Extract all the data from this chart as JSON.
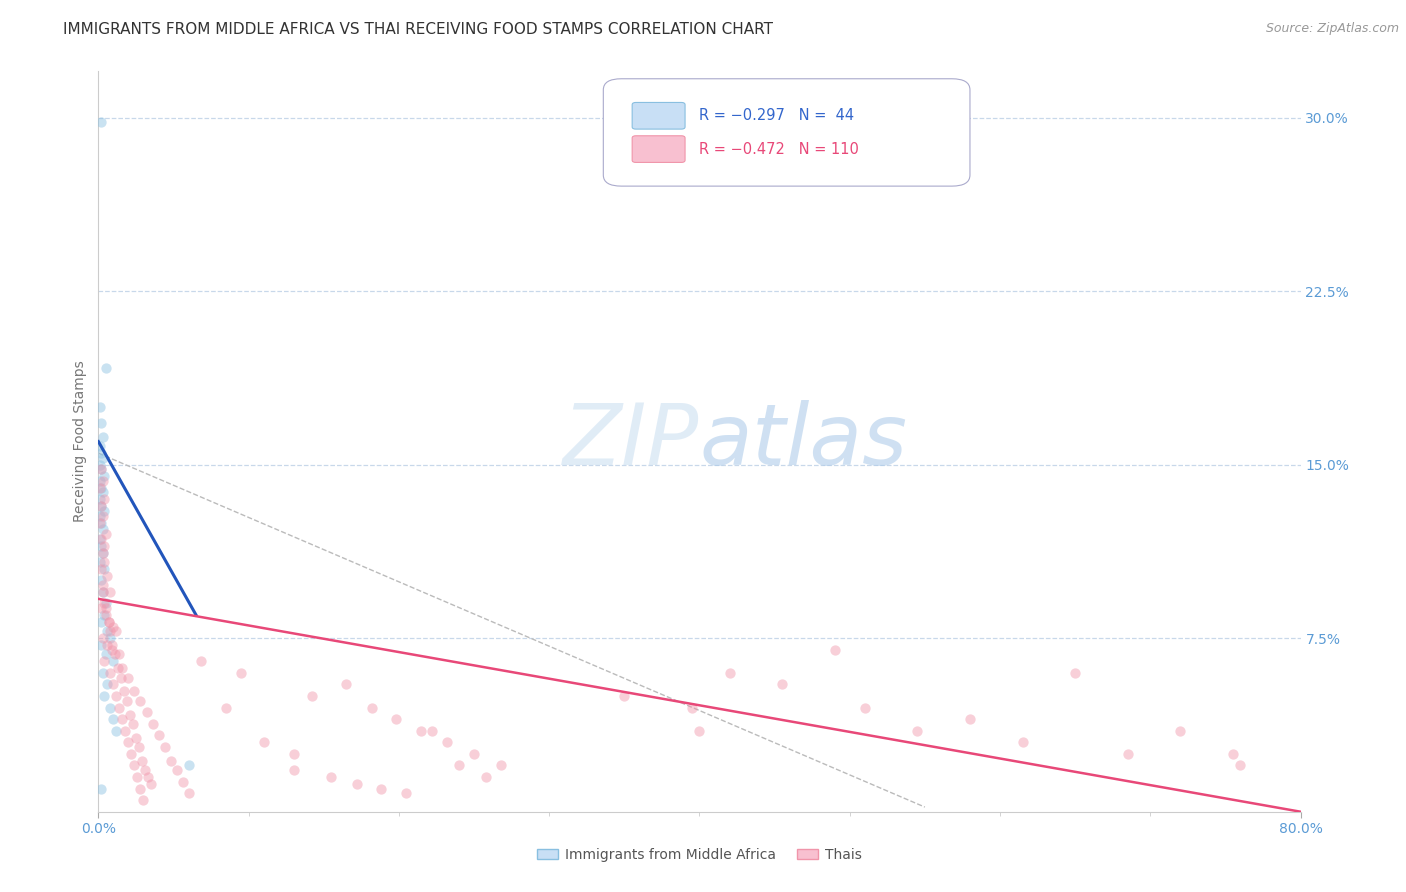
{
  "title": "IMMIGRANTS FROM MIDDLE AFRICA VS THAI RECEIVING FOOD STAMPS CORRELATION CHART",
  "source": "Source: ZipAtlas.com",
  "ylabel": "Receiving Food Stamps",
  "watermark": "ZIPatlas",
  "blue_scatter": [
    [
      0.002,
      0.298
    ],
    [
      0.005,
      0.192
    ],
    [
      0.001,
      0.175
    ],
    [
      0.002,
      0.168
    ],
    [
      0.003,
      0.162
    ],
    [
      0.001,
      0.158
    ],
    [
      0.002,
      0.155
    ],
    [
      0.003,
      0.153
    ],
    [
      0.001,
      0.15
    ],
    [
      0.002,
      0.148
    ],
    [
      0.004,
      0.145
    ],
    [
      0.001,
      0.143
    ],
    [
      0.002,
      0.14
    ],
    [
      0.003,
      0.138
    ],
    [
      0.001,
      0.135
    ],
    [
      0.002,
      0.132
    ],
    [
      0.004,
      0.13
    ],
    [
      0.001,
      0.128
    ],
    [
      0.002,
      0.125
    ],
    [
      0.003,
      0.122
    ],
    [
      0.001,
      0.118
    ],
    [
      0.002,
      0.115
    ],
    [
      0.003,
      0.112
    ],
    [
      0.001,
      0.108
    ],
    [
      0.004,
      0.105
    ],
    [
      0.002,
      0.1
    ],
    [
      0.003,
      0.095
    ],
    [
      0.005,
      0.09
    ],
    [
      0.004,
      0.085
    ],
    [
      0.002,
      0.082
    ],
    [
      0.006,
      0.078
    ],
    [
      0.008,
      0.075
    ],
    [
      0.002,
      0.072
    ],
    [
      0.005,
      0.068
    ],
    [
      0.01,
      0.065
    ],
    [
      0.003,
      0.06
    ],
    [
      0.006,
      0.055
    ],
    [
      0.004,
      0.05
    ],
    [
      0.008,
      0.045
    ],
    [
      0.01,
      0.04
    ],
    [
      0.012,
      0.035
    ],
    [
      0.06,
      0.02
    ],
    [
      0.002,
      0.01
    ]
  ],
  "pink_scatter": [
    [
      0.002,
      0.148
    ],
    [
      0.003,
      0.143
    ],
    [
      0.001,
      0.14
    ],
    [
      0.004,
      0.135
    ],
    [
      0.002,
      0.132
    ],
    [
      0.003,
      0.128
    ],
    [
      0.001,
      0.125
    ],
    [
      0.005,
      0.12
    ],
    [
      0.002,
      0.118
    ],
    [
      0.004,
      0.115
    ],
    [
      0.003,
      0.112
    ],
    [
      0.004,
      0.108
    ],
    [
      0.002,
      0.105
    ],
    [
      0.006,
      0.102
    ],
    [
      0.003,
      0.098
    ],
    [
      0.008,
      0.095
    ],
    [
      0.004,
      0.09
    ],
    [
      0.002,
      0.088
    ],
    [
      0.005,
      0.085
    ],
    [
      0.007,
      0.082
    ],
    [
      0.01,
      0.08
    ],
    [
      0.012,
      0.078
    ],
    [
      0.003,
      0.075
    ],
    [
      0.006,
      0.072
    ],
    [
      0.009,
      0.07
    ],
    [
      0.014,
      0.068
    ],
    [
      0.004,
      0.065
    ],
    [
      0.016,
      0.062
    ],
    [
      0.008,
      0.06
    ],
    [
      0.02,
      0.058
    ],
    [
      0.01,
      0.055
    ],
    [
      0.024,
      0.052
    ],
    [
      0.012,
      0.05
    ],
    [
      0.028,
      0.048
    ],
    [
      0.014,
      0.045
    ],
    [
      0.032,
      0.043
    ],
    [
      0.016,
      0.04
    ],
    [
      0.036,
      0.038
    ],
    [
      0.018,
      0.035
    ],
    [
      0.04,
      0.033
    ],
    [
      0.02,
      0.03
    ],
    [
      0.044,
      0.028
    ],
    [
      0.022,
      0.025
    ],
    [
      0.048,
      0.022
    ],
    [
      0.024,
      0.02
    ],
    [
      0.052,
      0.018
    ],
    [
      0.026,
      0.015
    ],
    [
      0.056,
      0.013
    ],
    [
      0.028,
      0.01
    ],
    [
      0.06,
      0.008
    ],
    [
      0.03,
      0.005
    ],
    [
      0.003,
      0.095
    ],
    [
      0.005,
      0.088
    ],
    [
      0.007,
      0.082
    ],
    [
      0.008,
      0.078
    ],
    [
      0.009,
      0.072
    ],
    [
      0.011,
      0.068
    ],
    [
      0.013,
      0.062
    ],
    [
      0.015,
      0.058
    ],
    [
      0.017,
      0.052
    ],
    [
      0.019,
      0.048
    ],
    [
      0.021,
      0.042
    ],
    [
      0.023,
      0.038
    ],
    [
      0.025,
      0.032
    ],
    [
      0.027,
      0.028
    ],
    [
      0.029,
      0.022
    ],
    [
      0.031,
      0.018
    ],
    [
      0.033,
      0.015
    ],
    [
      0.035,
      0.012
    ],
    [
      0.13,
      0.025
    ],
    [
      0.095,
      0.06
    ],
    [
      0.068,
      0.065
    ],
    [
      0.085,
      0.045
    ],
    [
      0.11,
      0.03
    ],
    [
      0.13,
      0.018
    ],
    [
      0.155,
      0.015
    ],
    [
      0.172,
      0.012
    ],
    [
      0.188,
      0.01
    ],
    [
      0.205,
      0.008
    ],
    [
      0.222,
      0.035
    ],
    [
      0.24,
      0.02
    ],
    [
      0.258,
      0.015
    ],
    [
      0.142,
      0.05
    ],
    [
      0.165,
      0.055
    ],
    [
      0.182,
      0.045
    ],
    [
      0.198,
      0.04
    ],
    [
      0.215,
      0.035
    ],
    [
      0.232,
      0.03
    ],
    [
      0.25,
      0.025
    ],
    [
      0.268,
      0.02
    ],
    [
      0.35,
      0.05
    ],
    [
      0.395,
      0.045
    ],
    [
      0.42,
      0.06
    ],
    [
      0.455,
      0.055
    ],
    [
      0.49,
      0.07
    ],
    [
      0.51,
      0.045
    ],
    [
      0.545,
      0.035
    ],
    [
      0.58,
      0.04
    ],
    [
      0.615,
      0.03
    ],
    [
      0.65,
      0.06
    ],
    [
      0.685,
      0.025
    ],
    [
      0.72,
      0.035
    ],
    [
      0.755,
      0.025
    ],
    [
      0.4,
      0.035
    ],
    [
      0.76,
      0.02
    ]
  ],
  "xlim": [
    0.0,
    0.8
  ],
  "ylim": [
    0.0,
    0.32
  ],
  "blue_line_x": [
    0.0,
    0.065
  ],
  "blue_line_y": [
    0.16,
    0.085
  ],
  "pink_line_x": [
    0.0,
    0.8
  ],
  "pink_line_y": [
    0.092,
    0.0
  ],
  "dashed_line_x": [
    0.0,
    0.55
  ],
  "dashed_line_y": [
    0.155,
    0.002
  ],
  "scatter_alpha": 0.45,
  "scatter_size": 55,
  "title_fontsize": 11,
  "axis_color": "#5b9bd5",
  "grid_color": "#c8d8ea",
  "background_color": "#ffffff",
  "blue_dot_color": "#89bfe0",
  "pink_dot_color": "#f095aa",
  "blue_line_color": "#2255bb",
  "pink_line_color": "#e84878",
  "legend_blue_text_color": "#3366cc",
  "legend_pink_text_color": "#e84878"
}
